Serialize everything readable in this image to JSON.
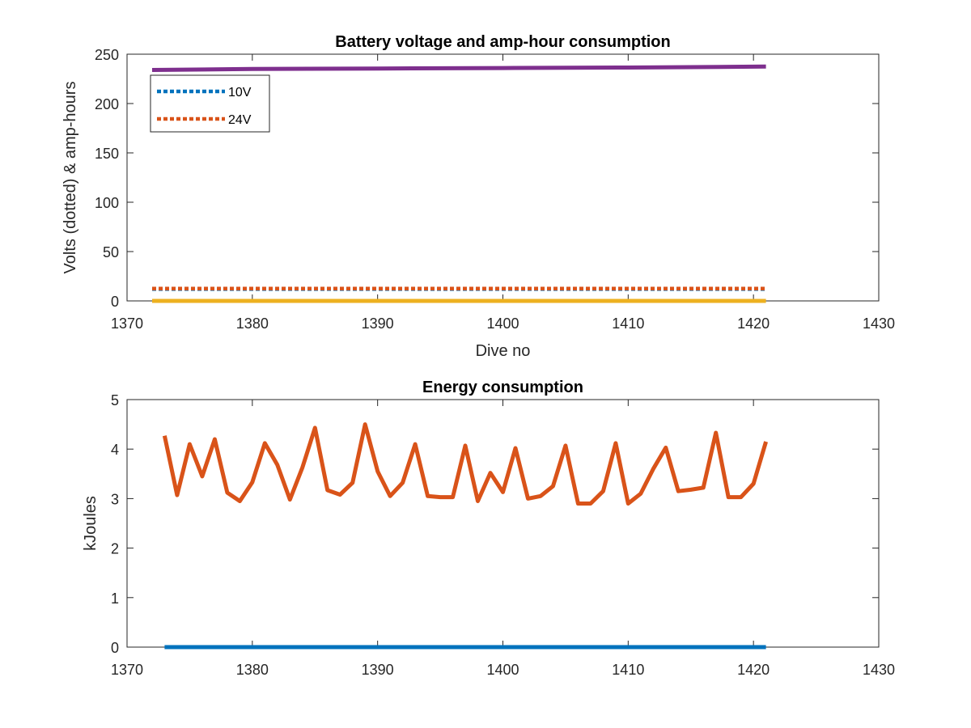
{
  "chart_data": [
    {
      "type": "line",
      "title": "Battery voltage and amp-hour consumption",
      "xlabel": "Dive no",
      "ylabel": "Volts (dotted) & amp-hours",
      "xlim": [
        1370,
        1430
      ],
      "ylim": [
        0,
        250
      ],
      "xticks": [
        "1370",
        "1380",
        "1390",
        "1400",
        "1410",
        "1420",
        "1430"
      ],
      "yticks": [
        "0",
        "50",
        "100",
        "150",
        "200",
        "250"
      ],
      "legend": {
        "position": "top-left",
        "entries": [
          "10V",
          "24V"
        ]
      },
      "series": [
        {
          "name": "10V",
          "style": "dotted",
          "color": "#0072BD",
          "x": [
            1372,
            1421
          ],
          "y": [
            12,
            12
          ]
        },
        {
          "name": "24V",
          "style": "dotted",
          "color": "#D95319",
          "x": [
            1372,
            1421
          ],
          "y": [
            12.5,
            12.5
          ]
        },
        {
          "style": "solid",
          "color": "#EDB120",
          "x": [
            1372,
            1421
          ],
          "y": [
            0,
            0
          ]
        },
        {
          "style": "solid",
          "color": "#7E2F8E",
          "x": [
            1372,
            1380,
            1390,
            1400,
            1410,
            1421
          ],
          "y": [
            234,
            235,
            235.5,
            236,
            236.5,
            237.5
          ]
        }
      ]
    },
    {
      "type": "line",
      "title": "Energy consumption",
      "xlabel": "",
      "ylabel": "kJoules",
      "xlim": [
        1370,
        1430
      ],
      "ylim": [
        0,
        5
      ],
      "xticks": [
        "1370",
        "1380",
        "1390",
        "1400",
        "1410",
        "1420",
        "1430"
      ],
      "yticks": [
        "0",
        "1",
        "2",
        "3",
        "4",
        "5"
      ],
      "series": [
        {
          "style": "solid",
          "color": "#0072BD",
          "x": [
            1373,
            1421
          ],
          "y": [
            0,
            0
          ]
        },
        {
          "style": "solid",
          "color": "#D95319",
          "x": [
            1373,
            1374,
            1375,
            1376,
            1377,
            1378,
            1379,
            1380,
            1381,
            1382,
            1383,
            1384,
            1385,
            1386,
            1387,
            1388,
            1389,
            1390,
            1391,
            1392,
            1393,
            1394,
            1395,
            1396,
            1397,
            1398,
            1399,
            1400,
            1401,
            1402,
            1403,
            1404,
            1405,
            1406,
            1407,
            1408,
            1409,
            1410,
            1411,
            1412,
            1413,
            1414,
            1415,
            1416,
            1417,
            1418,
            1419,
            1420,
            1421
          ],
          "y": [
            4.27,
            3.07,
            4.1,
            3.45,
            4.2,
            3.12,
            2.95,
            3.33,
            4.12,
            3.68,
            2.98,
            3.63,
            4.43,
            3.17,
            3.08,
            3.32,
            4.5,
            3.55,
            3.05,
            3.32,
            4.1,
            3.05,
            3.03,
            3.03,
            4.07,
            2.95,
            3.52,
            3.13,
            4.02,
            3.0,
            3.05,
            3.25,
            4.07,
            2.9,
            2.9,
            3.15,
            4.12,
            2.9,
            3.1,
            3.6,
            4.03,
            3.15,
            3.18,
            3.22,
            4.33,
            3.03,
            3.03,
            3.3,
            4.15
          ]
        }
      ]
    }
  ]
}
